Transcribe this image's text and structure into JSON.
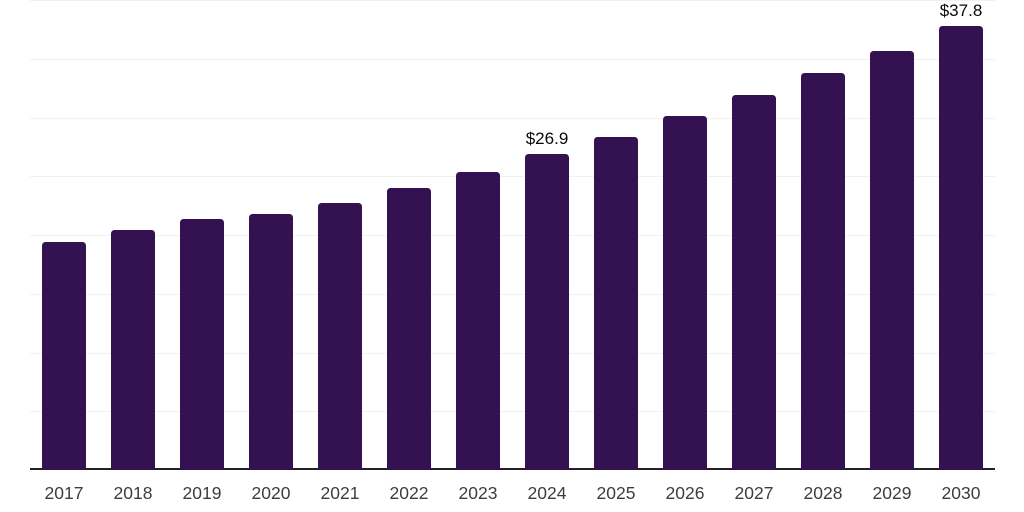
{
  "chart_data": {
    "type": "bar",
    "categories": [
      "2017",
      "2018",
      "2019",
      "2020",
      "2021",
      "2022",
      "2023",
      "2024",
      "2025",
      "2026",
      "2027",
      "2028",
      "2029",
      "2030"
    ],
    "values": [
      19.4,
      20.4,
      21.4,
      21.8,
      22.7,
      24.0,
      25.4,
      26.9,
      28.3,
      30.1,
      31.9,
      33.8,
      35.7,
      37.8
    ],
    "labeled_points": [
      {
        "category": "2024",
        "label": "$26.9"
      },
      {
        "category": "2030",
        "label": "$37.8"
      }
    ],
    "ylim": [
      0,
      40
    ],
    "gridline_step": 5,
    "grid": true,
    "legend": false,
    "colors": {
      "bar": "#341150",
      "gridline": "#f1f1f1",
      "axis": "#222222",
      "tick_label": "#3d3d3d",
      "data_label": "#0a0a0a",
      "background": "#ffffff"
    }
  }
}
